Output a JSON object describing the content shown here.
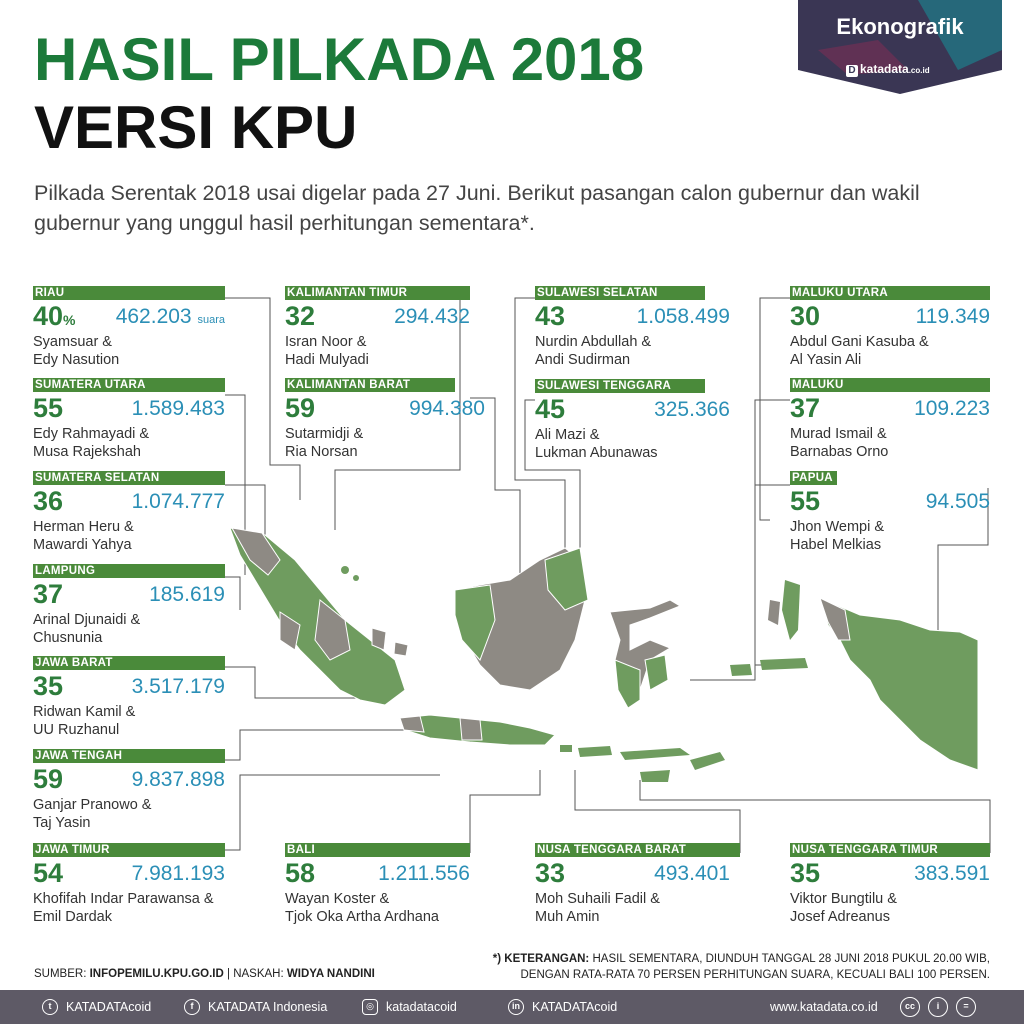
{
  "header": {
    "title_line1": "HASIL PILKADA 2018",
    "title_line2": "VERSI KPU",
    "intro": "Pilkada Serentak 2018 usai digelar pada 27 Juni. Berikut pasangan calon gubernur dan wakil gubernur yang unggul hasil perhitungan sementara*."
  },
  "badge": {
    "title": "Ekonografik",
    "logo_text": "katadata",
    "logo_suffix": ".co.id"
  },
  "regions": {
    "riau": {
      "name": "RIAU",
      "pct": "40",
      "pct_sign": "%",
      "votes": "462.203",
      "votes_unit": "suara",
      "line1": "Syamsuar &",
      "line2": "Edy Nasution"
    },
    "sumut": {
      "name": "SUMATERA UTARA",
      "pct": "55",
      "votes": "1.589.483",
      "line1": "Edy Rahmayadi &",
      "line2": "Musa Rajekshah"
    },
    "sumsel": {
      "name": "SUMATERA SELATAN",
      "pct": "36",
      "votes": "1.074.777",
      "line1": "Herman Heru &",
      "line2": "Mawardi Yahya"
    },
    "lampung": {
      "name": "LAMPUNG",
      "pct": "37",
      "votes": "185.619",
      "line1": "Arinal Djunaidi &",
      "line2": "Chusnunia"
    },
    "jabar": {
      "name": "JAWA BARAT",
      "pct": "35",
      "votes": "3.517.179",
      "line1": "Ridwan Kamil &",
      "line2": "UU Ruzhanul"
    },
    "jateng": {
      "name": "JAWA TENGAH",
      "pct": "59",
      "votes": "9.837.898",
      "line1": "Ganjar Pranowo &",
      "line2": "Taj Yasin"
    },
    "jatim": {
      "name": "JAWA TIMUR",
      "pct": "54",
      "votes": "7.981.193",
      "line1": "Khofifah Indar Parawansa &",
      "line2": "Emil  Dardak"
    },
    "kaltim": {
      "name": "KALIMANTAN TIMUR",
      "pct": "32",
      "votes": "294.432",
      "line1": "Isran Noor &",
      "line2": "Hadi Mulyadi"
    },
    "kalbar": {
      "name": "KALIMANTAN BARAT",
      "pct": "59",
      "votes": "994.380",
      "line1": "Sutarmidji &",
      "line2": "Ria Norsan"
    },
    "bali": {
      "name": "BALI",
      "pct": "58",
      "votes": "1.211.556",
      "line1": "Wayan Koster &",
      "line2": "Tjok Oka Artha Ardhana"
    },
    "sulsel": {
      "name": "SULAWESI SELATAN",
      "pct": "43",
      "votes": "1.058.499",
      "line1": "Nurdin Abdullah &",
      "line2": "Andi Sudirman"
    },
    "sultra": {
      "name": "SULAWESI TENGGARA",
      "pct": "45",
      "votes": "325.366",
      "line1": "Ali Mazi &",
      "line2": "Lukman Abunawas"
    },
    "ntb": {
      "name": "NUSA TENGGARA BARAT",
      "pct": "33",
      "votes": "493.401",
      "line1": "Moh Suhaili Fadil &",
      "line2": "Muh Amin"
    },
    "malut": {
      "name": "MALUKU UTARA",
      "pct": "30",
      "votes": "119.349",
      "line1": "Abdul Gani Kasuba &",
      "line2": "Al Yasin Ali"
    },
    "maluku": {
      "name": "MALUKU",
      "pct": "37",
      "votes": "109.223",
      "line1": "Murad Ismail &",
      "line2": "Barnabas Orno"
    },
    "papua": {
      "name": "PAPUA",
      "pct": "55",
      "votes": "94.505",
      "line1": "Jhon Wempi &",
      "line2": "Habel Melkias"
    },
    "ntt": {
      "name": "NUSA TENGGARA TIMUR",
      "pct": "35",
      "votes": "383.591",
      "line1": "Viktor Bungtilu &",
      "line2": "Josef Adreanus"
    }
  },
  "footnote": {
    "source_label": "SUMBER:",
    "source_value": "INFOPEMILU.KPU.GO.ID",
    "sep": "|",
    "writer_label": "NASKAH:",
    "writer_value": "WIDYA NANDINI",
    "note_label": "*) KETERANGAN:",
    "note_line1": "HASIL SEMENTARA, DIUNDUH TANGGAL 28 JUNI 2018 PUKUL 20.00 WIB,",
    "note_line2": "DENGAN RATA-RATA 70 PERSEN PERHITUNGAN SUARA, KECUALI BALI 100 PERSEN."
  },
  "footer": {
    "twitter": "KATADATAcoid",
    "facebook": "KATADATA Indonesia",
    "instagram": "katadatacoid",
    "linkedin": "KATADATAcoid",
    "website": "www.katadata.co.id"
  },
  "colors": {
    "green_dark": "#1c7a3a",
    "green_map": "#6f9c5f",
    "grey_map": "#8e8a84",
    "blue_votes": "#2b8fb6",
    "footer_bg": "#5e5a66"
  }
}
